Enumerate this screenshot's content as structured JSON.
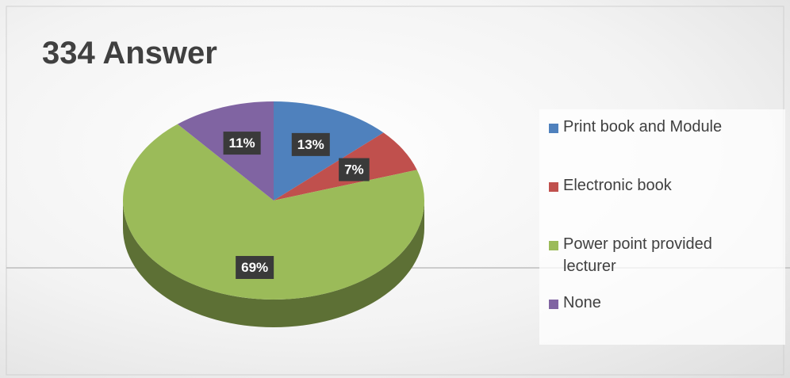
{
  "chart_data": {
    "type": "pie3d",
    "title": "334 Answer",
    "categories": [
      "Print book and Module",
      "Electronic book",
      "Power point provided lecturer",
      "None"
    ],
    "values": [
      13,
      7,
      69,
      11
    ],
    "value_labels": [
      "13%",
      "7%",
      "69%",
      "11%"
    ],
    "colors": [
      "#4f81bd",
      "#c0504d",
      "#9bbb59",
      "#8064a2"
    ],
    "legend": "right"
  }
}
